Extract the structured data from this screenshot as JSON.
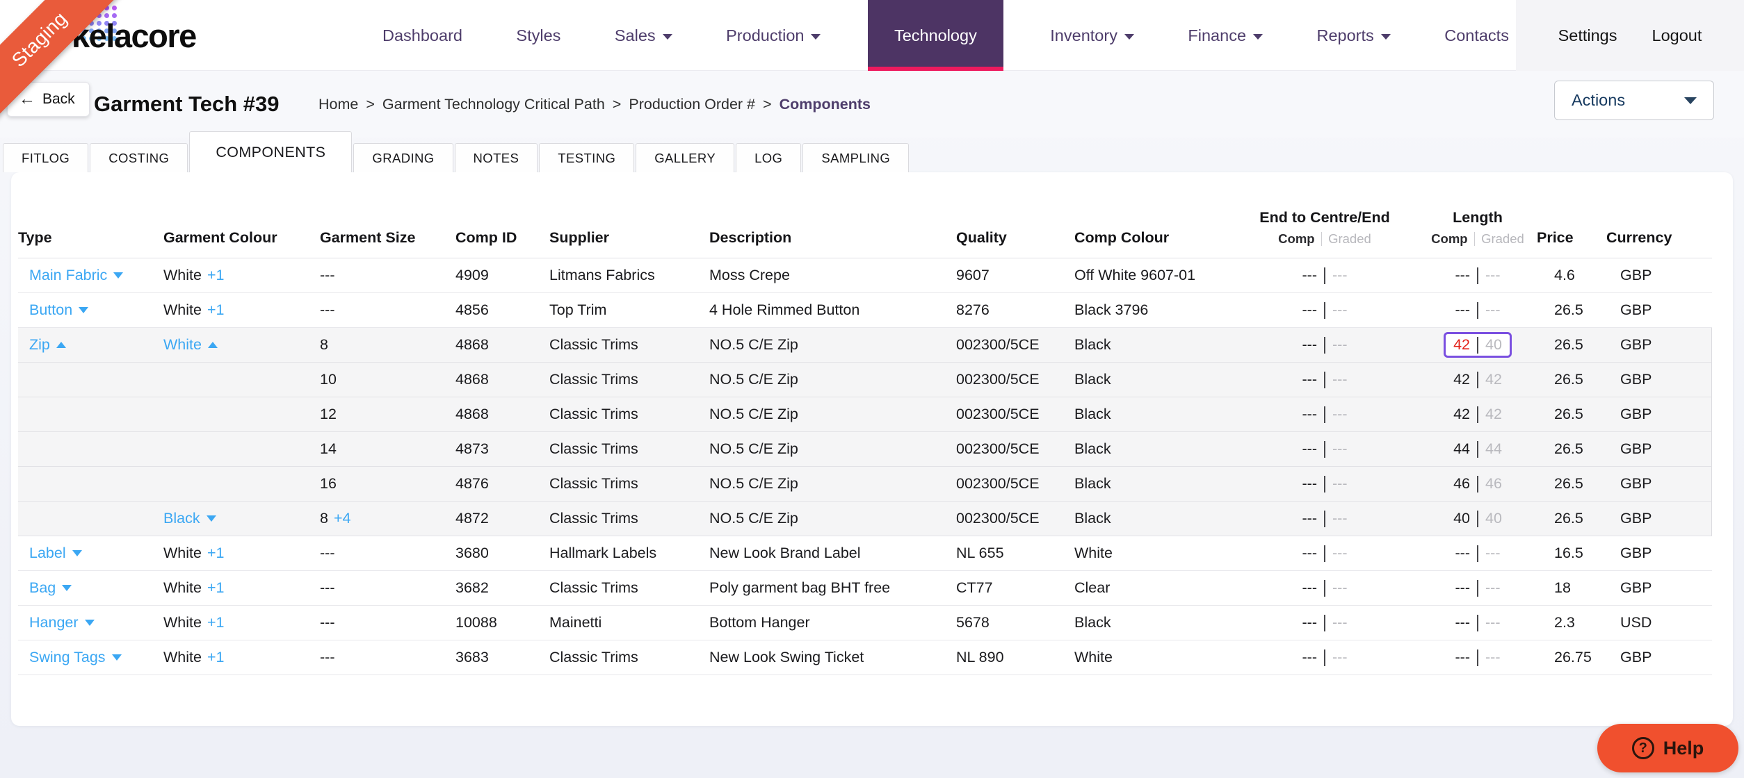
{
  "brand": {
    "name": "kelacore",
    "ribbon_label": "Staging"
  },
  "nav": {
    "items": [
      {
        "label": "Dashboard",
        "caret": false,
        "active": false
      },
      {
        "label": "Styles",
        "caret": false,
        "active": false
      },
      {
        "label": "Sales",
        "caret": true,
        "active": false
      },
      {
        "label": "Production",
        "caret": true,
        "active": false
      },
      {
        "label": "Technology",
        "caret": false,
        "active": true
      },
      {
        "label": "Inventory",
        "caret": true,
        "active": false
      },
      {
        "label": "Finance",
        "caret": true,
        "active": false
      },
      {
        "label": "Reports",
        "caret": true,
        "active": false
      },
      {
        "label": "Contacts",
        "caret": false,
        "active": false
      }
    ],
    "right_items": [
      {
        "label": "Settings"
      },
      {
        "label": "Logout"
      }
    ]
  },
  "header": {
    "back_label": "Back",
    "title": "Garment Tech #39",
    "breadcrumb": [
      "Home",
      "Garment Technology Critical Path",
      "Production Order #",
      "Components"
    ],
    "actions_label": "Actions"
  },
  "tabs": [
    {
      "label": "FITLOG",
      "active": false
    },
    {
      "label": "COSTING",
      "active": false
    },
    {
      "label": "COMPONENTS",
      "active": true
    },
    {
      "label": "GRADING",
      "active": false
    },
    {
      "label": "NOTES",
      "active": false
    },
    {
      "label": "TESTING",
      "active": false
    },
    {
      "label": "GALLERY",
      "active": false
    },
    {
      "label": "LOG",
      "active": false
    },
    {
      "label": "SAMPLING",
      "active": false
    }
  ],
  "table": {
    "columns": [
      {
        "id": "type",
        "label": "Type"
      },
      {
        "id": "garment_colour",
        "label": "Garment Colour"
      },
      {
        "id": "garment_size",
        "label": "Garment Size"
      },
      {
        "id": "comp_id",
        "label": "Comp ID"
      },
      {
        "id": "supplier",
        "label": "Supplier"
      },
      {
        "id": "description",
        "label": "Description"
      },
      {
        "id": "quality",
        "label": "Quality"
      },
      {
        "id": "comp_colour",
        "label": "Comp Colour"
      },
      {
        "id": "end_to_centre_end",
        "label": "End to Centre/End",
        "sub": [
          "Comp",
          "Graded"
        ],
        "align": "center"
      },
      {
        "id": "length",
        "label": "Length",
        "sub": [
          "Comp",
          "Graded"
        ],
        "align": "center"
      },
      {
        "id": "price",
        "label": "Price"
      },
      {
        "id": "currency",
        "label": "Currency"
      }
    ],
    "rows": [
      {
        "type": "Main Fabric",
        "type_caret": "down",
        "colour": "White",
        "colour_plus": "+1",
        "size": "---",
        "comp_id": "4909",
        "supplier": "Litmans Fabrics",
        "description": "Moss Crepe",
        "quality": "9607",
        "comp_colour": "Off White 9607-01",
        "e2c_comp": "---",
        "e2c_graded": "---",
        "len_comp": "---",
        "len_graded": "---",
        "price": "4.6",
        "currency": "GBP",
        "shaded": false
      },
      {
        "type": "Button",
        "type_caret": "down",
        "colour": "White",
        "colour_plus": "+1",
        "size": "---",
        "comp_id": "4856",
        "supplier": "Top Trim",
        "description": "4 Hole Rimmed Button",
        "quality": "8276",
        "comp_colour": "Black 3796",
        "e2c_comp": "---",
        "e2c_graded": "---",
        "len_comp": "---",
        "len_graded": "---",
        "price": "26.5",
        "currency": "GBP",
        "shaded": false
      },
      {
        "type": "Zip",
        "type_caret": "up",
        "colour": "White",
        "colour_caret": "up",
        "colour_blue": true,
        "size": "8",
        "comp_id": "4868",
        "supplier": "Classic Trims",
        "description": "NO.5 C/E Zip",
        "quality": "002300/5CE",
        "comp_colour": "Black",
        "e2c_comp": "---",
        "e2c_graded": "---",
        "len_comp": "42",
        "len_graded": "40",
        "len_highlight": true,
        "len_red": true,
        "price": "26.5",
        "currency": "GBP",
        "shaded": true
      },
      {
        "size": "10",
        "comp_id": "4868",
        "supplier": "Classic Trims",
        "description": "NO.5 C/E Zip",
        "quality": "002300/5CE",
        "comp_colour": "Black",
        "e2c_comp": "---",
        "e2c_graded": "---",
        "len_comp": "42",
        "len_graded": "42",
        "price": "26.5",
        "currency": "GBP",
        "shaded": true
      },
      {
        "size": "12",
        "comp_id": "4868",
        "supplier": "Classic Trims",
        "description": "NO.5 C/E Zip",
        "quality": "002300/5CE",
        "comp_colour": "Black",
        "e2c_comp": "---",
        "e2c_graded": "---",
        "len_comp": "42",
        "len_graded": "42",
        "price": "26.5",
        "currency": "GBP",
        "shaded": true
      },
      {
        "size": "14",
        "comp_id": "4873",
        "supplier": "Classic Trims",
        "description": "NO.5 C/E Zip",
        "quality": "002300/5CE",
        "comp_colour": "Black",
        "e2c_comp": "---",
        "e2c_graded": "---",
        "len_comp": "44",
        "len_graded": "44",
        "price": "26.5",
        "currency": "GBP",
        "shaded": true
      },
      {
        "size": "16",
        "comp_id": "4876",
        "supplier": "Classic Trims",
        "description": "NO.5 C/E Zip",
        "quality": "002300/5CE",
        "comp_colour": "Black",
        "e2c_comp": "---",
        "e2c_graded": "---",
        "len_comp": "46",
        "len_graded": "46",
        "price": "26.5",
        "currency": "GBP",
        "shaded": true
      },
      {
        "colour": "Black",
        "colour_caret": "down",
        "colour_blue": true,
        "size": "8",
        "size_plus": "+4",
        "comp_id": "4872",
        "supplier": "Classic Trims",
        "description": "NO.5 C/E Zip",
        "quality": "002300/5CE",
        "comp_colour": "Black",
        "e2c_comp": "---",
        "e2c_graded": "---",
        "len_comp": "40",
        "len_graded": "40",
        "price": "26.5",
        "currency": "GBP",
        "shaded": true
      },
      {
        "type": "Label",
        "type_caret": "down",
        "colour": "White",
        "colour_plus": "+1",
        "size": "---",
        "comp_id": "3680",
        "supplier": "Hallmark Labels",
        "description": "New Look Brand Label",
        "quality": "NL 655",
        "comp_colour": "White",
        "e2c_comp": "---",
        "e2c_graded": "---",
        "len_comp": "---",
        "len_graded": "---",
        "price": "16.5",
        "currency": "GBP",
        "shaded": false
      },
      {
        "type": "Bag",
        "type_caret": "down",
        "colour": "White",
        "colour_plus": "+1",
        "size": "---",
        "comp_id": "3682",
        "supplier": "Classic Trims",
        "description": "Poly garment bag BHT free",
        "quality": "CT77",
        "comp_colour": "Clear",
        "e2c_comp": "---",
        "e2c_graded": "---",
        "len_comp": "---",
        "len_graded": "---",
        "price": "18",
        "currency": "GBP",
        "shaded": false
      },
      {
        "type": "Hanger",
        "type_caret": "down",
        "colour": "White",
        "colour_plus": "+1",
        "size": "---",
        "comp_id": "10088",
        "supplier": "Mainetti",
        "description": "Bottom Hanger",
        "quality": "5678",
        "comp_colour": "Black",
        "e2c_comp": "---",
        "e2c_graded": "---",
        "len_comp": "---",
        "len_graded": "---",
        "price": "2.3",
        "currency": "USD",
        "shaded": false
      },
      {
        "type": "Swing Tags",
        "type_caret": "down",
        "colour": "White",
        "colour_plus": "+1",
        "size": "---",
        "comp_id": "3683",
        "supplier": "Classic Trims",
        "description": "New Look Swing Ticket",
        "quality": "NL 890",
        "comp_colour": "White",
        "e2c_comp": "---",
        "e2c_graded": "---",
        "len_comp": "---",
        "len_graded": "---",
        "price": "26.75",
        "currency": "GBP",
        "shaded": false
      }
    ]
  },
  "help": {
    "label": "Help"
  },
  "colors": {
    "nav_active_bg": "#4d3464",
    "nav_active_underline": "#ed1a5e",
    "nav_text": "#4e3d6b",
    "link_blue": "#3ba7f3",
    "highlight_border": "#7a4fe0",
    "value_red": "#e32119",
    "ribbon_orange": "#e95b3b",
    "help_orange": "#f0502e"
  }
}
